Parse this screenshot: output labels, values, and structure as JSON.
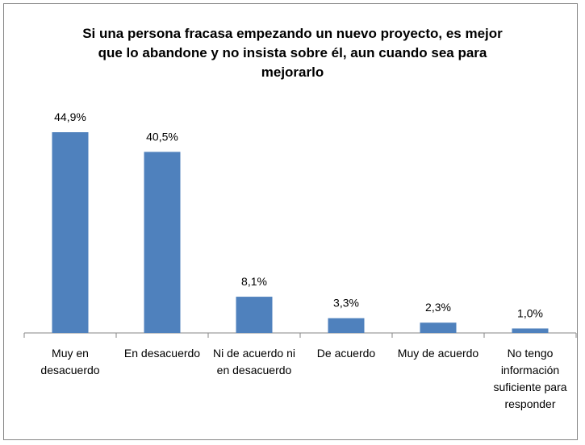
{
  "chart_data": {
    "type": "bar",
    "title": "Si una persona fracasa empezando un nuevo proyecto, es mejor que lo abandone y no insista sobre él, aun cuando sea para mejorarlo",
    "categories": [
      "Muy en desacuerdo",
      "En desacuerdo",
      "Ni de acuerdo ni en desacuerdo",
      "De acuerdo",
      "Muy de acuerdo",
      "No tengo información suficiente para responder"
    ],
    "values": [
      44.9,
      40.5,
      8.1,
      3.3,
      2.3,
      1.0
    ],
    "value_labels": [
      "44,9%",
      "40,5%",
      "8,1%",
      "3,3%",
      "2,3%",
      "1,0%"
    ],
    "color": "#4f81bd"
  }
}
